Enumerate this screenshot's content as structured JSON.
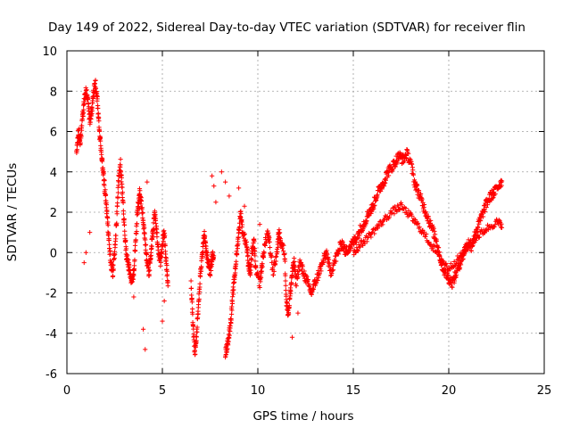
{
  "chart_data": {
    "type": "scatter",
    "title": "Day 149 of 2022, Sidereal Day-to-day VTEC variation (SDTVAR) for receiver flin",
    "xlabel": "GPS time / hours",
    "ylabel": "SDTVAR / TECUs",
    "xlim": [
      0,
      25
    ],
    "ylim": [
      -6,
      10
    ],
    "xticks": [
      0,
      5,
      10,
      15,
      20,
      25
    ],
    "yticks": [
      -6,
      -4,
      -2,
      0,
      2,
      4,
      6,
      8,
      10
    ],
    "xtick_labels": [
      "0",
      "5",
      "10",
      "15",
      "20",
      "25"
    ],
    "ytick_labels": [
      "-6",
      "-4",
      "-2",
      "0",
      "2",
      "4",
      "6",
      "8",
      "10"
    ],
    "grid": true,
    "marker": "plus",
    "color": "#ff0000",
    "series": [
      {
        "name": "SDTVAR",
        "trace": [
          [
            0.5,
            5.0
          ],
          [
            0.6,
            6.0
          ],
          [
            0.7,
            5.5
          ],
          [
            0.8,
            6.5
          ],
          [
            0.9,
            7.5
          ],
          [
            1.0,
            8.0
          ],
          [
            1.1,
            7.5
          ],
          [
            1.2,
            6.5
          ],
          [
            1.3,
            7.0
          ],
          [
            1.4,
            8.0
          ],
          [
            1.5,
            8.3
          ],
          [
            1.6,
            7.5
          ],
          [
            1.7,
            6.0
          ],
          [
            1.8,
            5.0
          ],
          [
            1.9,
            4.0
          ],
          [
            2.0,
            3.0
          ],
          [
            2.1,
            2.0
          ],
          [
            2.2,
            0.5
          ],
          [
            2.3,
            -0.5
          ],
          [
            2.4,
            -1.0
          ],
          [
            2.5,
            0.0
          ],
          [
            2.6,
            1.5
          ],
          [
            2.7,
            3.5
          ],
          [
            2.8,
            4.5
          ],
          [
            2.9,
            3.0
          ],
          [
            3.0,
            1.5
          ],
          [
            3.1,
            0.0
          ],
          [
            3.2,
            -0.5
          ],
          [
            3.3,
            -1.0
          ],
          [
            3.4,
            -1.5
          ],
          [
            3.5,
            -1.0
          ],
          [
            3.6,
            0.5
          ],
          [
            3.7,
            2.0
          ],
          [
            3.8,
            3.0
          ],
          [
            3.9,
            2.5
          ],
          [
            4.0,
            1.5
          ],
          [
            4.1,
            0.5
          ],
          [
            4.2,
            -0.5
          ],
          [
            4.3,
            -1.0
          ],
          [
            4.4,
            0.0
          ],
          [
            4.5,
            1.0
          ],
          [
            4.6,
            2.0
          ],
          [
            4.7,
            1.0
          ],
          [
            4.8,
            0.0
          ],
          [
            4.9,
            -0.5
          ],
          [
            5.0,
            0.5
          ],
          [
            5.1,
            1.0
          ],
          [
            5.2,
            -0.5
          ],
          [
            5.3,
            -1.5
          ],
          [
            6.5,
            -1.5
          ],
          [
            6.6,
            -3.5
          ],
          [
            6.7,
            -5.0
          ],
          [
            6.8,
            -4.0
          ],
          [
            6.9,
            -2.5
          ],
          [
            7.0,
            -1.0
          ],
          [
            7.1,
            0.0
          ],
          [
            7.2,
            1.0
          ],
          [
            7.3,
            0.0
          ],
          [
            7.4,
            -0.5
          ],
          [
            7.5,
            -1.0
          ],
          [
            7.6,
            -0.3
          ],
          [
            7.7,
            0.0
          ],
          [
            8.3,
            -5.0
          ],
          [
            8.4,
            -4.6
          ],
          [
            8.5,
            -4.0
          ],
          [
            8.6,
            -3.2
          ],
          [
            8.7,
            -2.0
          ],
          [
            8.8,
            -1.0
          ],
          [
            8.9,
            0.0
          ],
          [
            9.0,
            1.0
          ],
          [
            9.1,
            2.0
          ],
          [
            9.2,
            1.0
          ],
          [
            9.4,
            0.5
          ],
          [
            9.5,
            -0.5
          ],
          [
            9.6,
            -1.0
          ],
          [
            9.7,
            0.0
          ],
          [
            9.8,
            0.5
          ],
          [
            9.9,
            -1.0
          ],
          [
            10.1,
            -1.5
          ],
          [
            10.2,
            -0.8
          ],
          [
            10.3,
            0.0
          ],
          [
            10.5,
            1.0
          ],
          [
            10.6,
            0.5
          ],
          [
            10.8,
            -1.0
          ],
          [
            11.0,
            0.0
          ],
          [
            11.1,
            1.0
          ],
          [
            11.2,
            0.5
          ],
          [
            11.4,
            0.0
          ],
          [
            11.5,
            -2.5
          ],
          [
            11.6,
            -3.0
          ],
          [
            11.7,
            -2.0
          ],
          [
            11.8,
            -1.0
          ],
          [
            11.9,
            -0.5
          ],
          [
            12.0,
            -1.5
          ],
          [
            12.2,
            -0.5
          ],
          [
            12.4,
            -1.0
          ],
          [
            12.6,
            -1.5
          ],
          [
            12.8,
            -2.0
          ],
          [
            13.0,
            -1.5
          ],
          [
            13.2,
            -1.0
          ],
          [
            13.4,
            -0.5
          ],
          [
            13.6,
            0.0
          ],
          [
            13.8,
            -1.0
          ],
          [
            14.0,
            -0.5
          ],
          [
            14.2,
            0.0
          ],
          [
            14.4,
            0.5
          ],
          [
            14.6,
            0.0
          ],
          [
            14.8,
            0.3
          ],
          [
            15.0,
            0.5
          ],
          [
            15.2,
            0.8
          ],
          [
            15.4,
            1.2
          ],
          [
            15.6,
            1.5
          ],
          [
            15.8,
            2.0
          ],
          [
            16.0,
            2.2
          ],
          [
            16.2,
            2.8
          ],
          [
            16.4,
            3.2
          ],
          [
            16.6,
            3.5
          ],
          [
            16.8,
            4.0
          ],
          [
            17.0,
            4.2
          ],
          [
            17.2,
            4.5
          ],
          [
            17.4,
            4.8
          ],
          [
            17.6,
            4.6
          ],
          [
            17.8,
            4.9
          ],
          [
            18.0,
            4.5
          ],
          [
            18.2,
            3.5
          ],
          [
            18.4,
            3.0
          ],
          [
            18.6,
            2.5
          ],
          [
            18.8,
            2.0
          ],
          [
            19.0,
            1.5
          ],
          [
            19.2,
            1.0
          ],
          [
            19.4,
            0.5
          ],
          [
            19.6,
            -0.5
          ],
          [
            19.8,
            -1.0
          ],
          [
            20.0,
            -1.3
          ],
          [
            20.2,
            -1.5
          ],
          [
            20.4,
            -1.0
          ],
          [
            20.6,
            -0.5
          ],
          [
            20.8,
            0.0
          ],
          [
            21.0,
            0.5
          ],
          [
            21.2,
            0.3
          ],
          [
            21.4,
            1.0
          ],
          [
            21.6,
            1.5
          ],
          [
            21.8,
            2.0
          ],
          [
            22.0,
            2.5
          ],
          [
            22.2,
            2.8
          ],
          [
            22.4,
            3.0
          ],
          [
            22.6,
            3.3
          ],
          [
            22.8,
            3.6
          ]
        ],
        "lower_trace": [
          [
            15.0,
            0.0
          ],
          [
            15.5,
            0.5
          ],
          [
            16.0,
            1.0
          ],
          [
            16.5,
            1.5
          ],
          [
            17.0,
            2.0
          ],
          [
            17.5,
            2.3
          ],
          [
            18.0,
            1.8
          ],
          [
            18.5,
            1.2
          ],
          [
            19.0,
            0.5
          ],
          [
            19.5,
            -0.2
          ],
          [
            20.0,
            -0.8
          ],
          [
            20.5,
            -0.3
          ],
          [
            21.0,
            0.3
          ],
          [
            21.5,
            0.8
          ],
          [
            22.0,
            1.2
          ],
          [
            22.5,
            1.5
          ],
          [
            22.8,
            1.4
          ]
        ],
        "outliers": [
          [
            0.9,
            -0.5
          ],
          [
            1.0,
            0.0
          ],
          [
            1.2,
            1.0
          ],
          [
            3.5,
            -2.2
          ],
          [
            4.0,
            -3.8
          ],
          [
            4.1,
            -4.8
          ],
          [
            5.0,
            -3.4
          ],
          [
            5.1,
            -2.4
          ],
          [
            7.6,
            3.8
          ],
          [
            7.7,
            3.3
          ],
          [
            7.8,
            2.5
          ],
          [
            8.1,
            4.0
          ],
          [
            8.3,
            3.5
          ],
          [
            8.5,
            2.8
          ],
          [
            9.0,
            3.2
          ],
          [
            9.3,
            2.3
          ],
          [
            10.1,
            1.4
          ],
          [
            11.8,
            -4.2
          ],
          [
            12.1,
            -3.0
          ],
          [
            4.2,
            3.5
          ],
          [
            3.8,
            2.2
          ]
        ]
      }
    ]
  }
}
